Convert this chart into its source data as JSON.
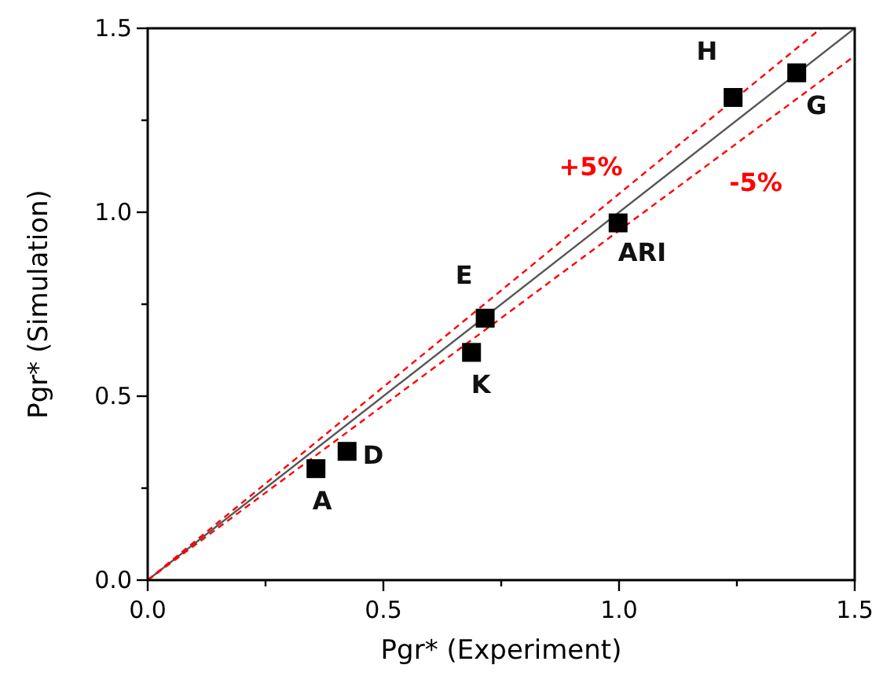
{
  "chart_data": {
    "type": "scatter",
    "xlabel": "Pgr* (Experiment)",
    "ylabel": "Pgr* (Simulation)",
    "xlim": [
      0,
      1.5
    ],
    "ylim": [
      0,
      1.5
    ],
    "xticks": [
      {
        "value": 0,
        "label": "0.0"
      },
      {
        "value": 0.25,
        "label": null
      },
      {
        "value": 0.5,
        "label": "0.5"
      },
      {
        "value": 0.75,
        "label": null
      },
      {
        "value": 1,
        "label": "1.0"
      },
      {
        "value": 1.25,
        "label": null
      },
      {
        "value": 1.5,
        "label": "1.5"
      }
    ],
    "yticks": [
      {
        "value": 0,
        "label": "0.0"
      },
      {
        "value": 0.25,
        "label": null
      },
      {
        "value": 0.5,
        "label": "0.5"
      },
      {
        "value": 0.75,
        "label": null
      },
      {
        "value": 1,
        "label": "1.0"
      },
      {
        "value": 1.25,
        "label": null
      },
      {
        "value": 1.5,
        "label": "1.5"
      }
    ],
    "grid": false,
    "series": [
      {
        "type": "line",
        "color": "#555555",
        "line_style": "solid",
        "x": [
          0,
          1.5
        ],
        "values": [
          0,
          1.5
        ]
      },
      {
        "type": "line",
        "name": "+5%",
        "color": "#ff0000",
        "line_style": "dashed",
        "x": [
          0,
          1.4286
        ],
        "values": [
          0,
          1.5
        ]
      },
      {
        "type": "line",
        "name": "-5%",
        "color": "#ff0000",
        "line_style": "dashed",
        "x": [
          0,
          1.5
        ],
        "values": [
          0,
          1.425
        ]
      },
      {
        "color": "#000000",
        "marker": "square",
        "x": [
          0.357,
          0.423,
          0.687,
          0.716,
          0.998,
          1.242,
          1.377
        ],
        "values": [
          0.303,
          0.35,
          0.619,
          0.712,
          0.971,
          1.312,
          1.379
        ]
      }
    ],
    "annotations": [
      {
        "text": "A",
        "x": 0.357,
        "y": 0.303
      },
      {
        "text": "D",
        "x": 0.423,
        "y": 0.35
      },
      {
        "text": "K",
        "x": 0.687,
        "y": 0.619
      },
      {
        "text": "E",
        "x": 0.716,
        "y": 0.712
      },
      {
        "text": "ARI",
        "x": 0.998,
        "y": 0.971
      },
      {
        "text": "H",
        "x": 1.242,
        "y": 1.312
      },
      {
        "text": "G",
        "x": 1.377,
        "y": 1.379
      }
    ]
  }
}
